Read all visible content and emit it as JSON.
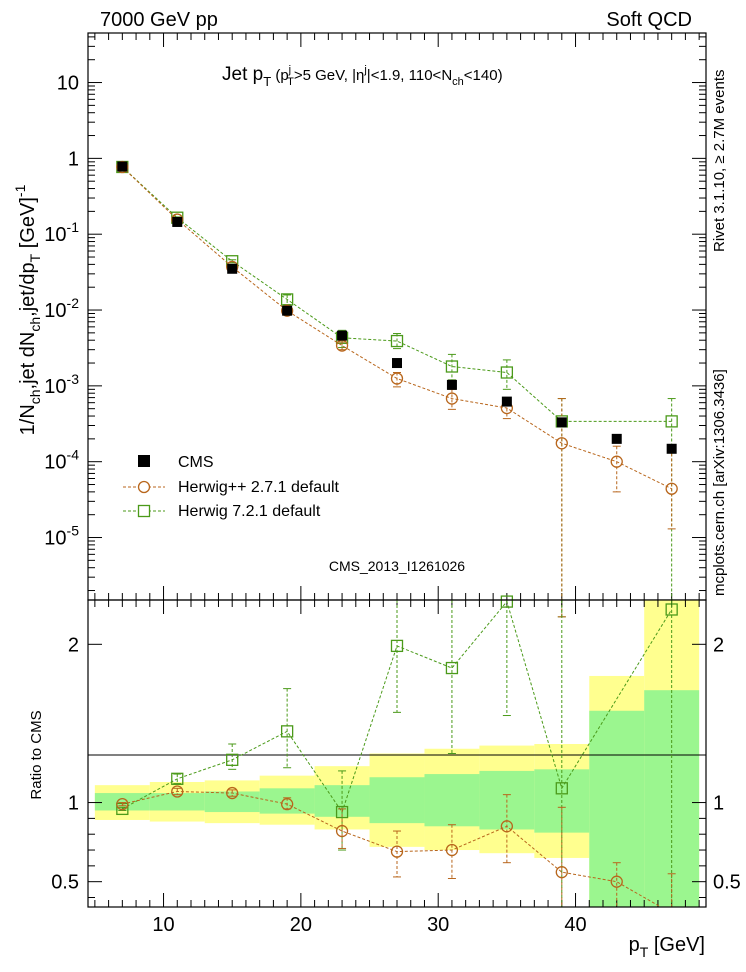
{
  "header": {
    "left": "7000 GeV pp",
    "right": "Soft QCD"
  },
  "side": {
    "rivet": "Rivet 3.1.10, ≥ 2.7M events",
    "mcplots": "mcplots.cern.ch [arXiv:1306.3436]"
  },
  "watermark": "CMS_2013_I1261026",
  "chart_data": [
    {
      "type": "scatter",
      "panel": "main",
      "title": "Jet pT (pTj>5 GeV, |ηj|<1.9, 110<Nch<140)",
      "ylabel": "1/Nch,jet dNch,jet/dpT [GeV]-1",
      "xlim": [
        4.5,
        49.5
      ],
      "ylim": [
        1.5e-06,
        45
      ],
      "yscale": "log",
      "yticks": [
        1e-05,
        0.0001,
        0.001,
        0.01,
        0.1,
        1,
        10
      ],
      "ytick_labels": [
        "10-5",
        "10-4",
        "10-3",
        "10-2",
        "10-1",
        "1",
        "10"
      ],
      "legend_position": "bottom-left",
      "x": [
        7,
        11,
        15,
        19,
        23,
        27,
        31,
        35,
        39,
        43,
        47
      ],
      "series": [
        {
          "name": "CMS",
          "color": "#000000",
          "marker": "filled-square",
          "values": [
            0.78,
            0.145,
            0.035,
            0.0098,
            0.0046,
            0.002,
            0.00103,
            0.00062,
            0.00033,
            0.0002,
            0.000148
          ]
        },
        {
          "name": "Herwig++ 2.7.1 default",
          "color": "#b8661c",
          "marker": "open-circle",
          "values": [
            0.77,
            0.156,
            0.037,
            0.0098,
            0.0034,
            0.00125,
            0.00068,
            0.00051,
            0.000175,
            0.0001,
            4.4e-05
          ],
          "err_lo": [
            0.76,
            0.153,
            0.036,
            0.0093,
            0.003,
            0.00097,
            0.00049,
            0.00037,
            9e-07,
            4e-05,
            1.3e-05
          ],
          "err_hi": [
            0.78,
            0.159,
            0.038,
            0.0103,
            0.0038,
            0.0015,
            0.0009,
            0.00068,
            0.00068,
            0.00016,
            0.00015
          ]
        },
        {
          "name": "Herwig 7.2.1 default",
          "color": "#4b9a1a",
          "marker": "open-square",
          "values": [
            0.77,
            0.165,
            0.044,
            0.0138,
            0.0043,
            0.0039,
            0.0018,
            0.0015,
            0.00034,
            null,
            0.00034
          ],
          "err_lo": [
            0.76,
            0.161,
            0.042,
            0.0118,
            0.0032,
            0.0031,
            0.0012,
            0.0009,
            9e-07,
            null,
            9e-07
          ],
          "err_hi": [
            0.78,
            0.169,
            0.046,
            0.0158,
            0.0054,
            0.0049,
            0.0026,
            0.0022,
            0.00068,
            null,
            0.00068
          ]
        }
      ]
    },
    {
      "type": "scatter",
      "panel": "ratio",
      "ylabel": "Ratio to CMS",
      "xlabel": "pT [GeV]",
      "xlim": [
        4.5,
        49.5
      ],
      "ylim": [
        0.34,
        2.28
      ],
      "xticks": [
        10,
        20,
        30,
        40
      ],
      "yticks": [
        0.5,
        1,
        2
      ],
      "ytick_labels": [
        "0.5",
        "1",
        "2"
      ],
      "bands": {
        "edges": [
          5,
          9,
          13,
          17,
          21,
          25,
          29,
          33,
          37,
          41,
          45,
          49
        ],
        "stat": [
          [
            0.95,
            1.06
          ],
          [
            0.95,
            1.06
          ],
          [
            0.94,
            1.07
          ],
          [
            0.93,
            1.09
          ],
          [
            0.91,
            1.11
          ],
          [
            0.87,
            1.16
          ],
          [
            0.85,
            1.18
          ],
          [
            0.83,
            1.2
          ],
          [
            0.81,
            1.21
          ],
          [
            0.34,
            1.58
          ],
          [
            0.34,
            1.71
          ]
        ],
        "total": [
          [
            0.89,
            1.11
          ],
          [
            0.88,
            1.13
          ],
          [
            0.87,
            1.14
          ],
          [
            0.86,
            1.17
          ],
          [
            0.83,
            1.23
          ],
          [
            0.72,
            1.31
          ],
          [
            0.7,
            1.34
          ],
          [
            0.68,
            1.36
          ],
          [
            0.65,
            1.37
          ],
          [
            0.34,
            1.8
          ],
          [
            0.34,
            2.28
          ]
        ],
        "stat_color": "#9bf68f",
        "total_color": "#ffff8f"
      },
      "x": [
        7,
        11,
        15,
        19,
        23,
        27,
        31,
        35,
        39,
        43,
        47
      ],
      "series": [
        {
          "name": "Herwig++ 2.7.1 default",
          "color": "#b8661c",
          "marker": "open-circle",
          "values": [
            0.99,
            1.07,
            1.06,
            0.99,
            0.82,
            0.69,
            0.7,
            0.85,
            0.56,
            0.5,
            0.3
          ],
          "err_lo": [
            0.98,
            1.05,
            1.04,
            0.96,
            0.71,
            0.53,
            0.52,
            0.62,
            0.34,
            0.34,
            0.34
          ],
          "err_hi": [
            1.0,
            1.09,
            1.08,
            1.03,
            0.96,
            0.82,
            0.86,
            1.05,
            0.97,
            0.62,
            0.55
          ]
        },
        {
          "name": "Herwig 7.2.1 default",
          "color": "#4b9a1a",
          "marker": "open-square",
          "values": [
            0.96,
            1.15,
            1.27,
            1.45,
            0.94,
            1.99,
            1.85,
            2.27,
            1.09,
            null,
            2.22
          ],
          "err_lo": [
            0.95,
            1.12,
            1.21,
            1.22,
            0.7,
            1.57,
            1.31,
            1.55,
            0.34,
            null,
            0.34
          ],
          "err_hi": [
            0.97,
            1.18,
            1.37,
            1.72,
            1.2,
            2.28,
            2.28,
            2.28,
            2.28,
            null,
            2.28
          ]
        }
      ]
    }
  ]
}
